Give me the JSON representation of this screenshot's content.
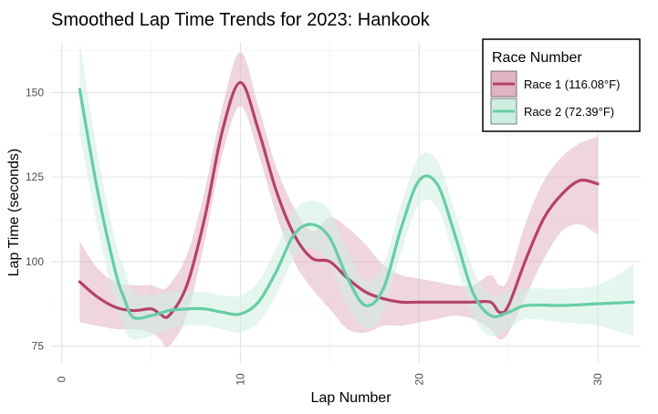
{
  "chart_data": {
    "type": "line",
    "title": "Smoothed Lap Time Trends for 2023: Hankook",
    "xlabel": "Lap Number",
    "ylabel": "Lap Time (seconds)",
    "xlim": [
      -0.6,
      32.4
    ],
    "ylim": [
      70,
      165
    ],
    "xticks": [
      0,
      10,
      20,
      30
    ],
    "yticks": [
      75,
      100,
      125,
      150
    ],
    "grid": true,
    "legend": {
      "title": "Race Number",
      "position": "top-right"
    },
    "series": [
      {
        "name": "Race 1 (116.08°F)",
        "color": "#b5426a",
        "fill": "#e2b3c4",
        "x": [
          1,
          2,
          3,
          4,
          5,
          5.5,
          6,
          7,
          8,
          9,
          10,
          11,
          12,
          13,
          14,
          15,
          16,
          17,
          18,
          19,
          20,
          21,
          22,
          23,
          24,
          24.5,
          25,
          26,
          27,
          28,
          29,
          30
        ],
        "y": [
          94,
          89.5,
          86.5,
          85.5,
          86,
          84.5,
          84,
          93,
          113,
          139,
          153,
          139,
          121,
          108,
          101,
          100,
          95,
          91,
          89,
          88,
          88,
          88,
          88,
          88,
          88,
          85,
          87,
          101,
          113,
          120,
          124,
          123
        ],
        "lower": [
          82,
          81,
          80,
          80,
          79,
          77,
          75,
          84,
          106,
          132,
          146,
          132,
          114,
          100,
          92,
          86,
          80,
          79,
          81,
          81,
          82,
          83,
          84,
          83,
          80,
          77,
          79,
          90,
          101,
          109,
          111,
          108
        ],
        "upper": [
          106,
          98,
          94,
          93,
          93,
          92,
          93,
          102,
          121,
          146,
          162,
          146,
          128,
          116,
          109,
          113,
          110,
          105,
          99,
          96,
          95,
          94,
          93,
          93,
          96,
          93,
          95,
          112,
          124,
          131,
          135,
          137
        ]
      },
      {
        "name": "Race 2 (72.39°F)",
        "color": "#66cda5",
        "fill": "#cdeee0",
        "x": [
          1,
          2,
          3,
          3.5,
          4,
          5,
          6,
          7,
          8,
          9,
          10,
          11,
          12,
          13,
          14,
          15,
          16,
          17,
          18,
          19,
          20,
          21,
          22,
          23,
          24,
          25,
          26,
          28,
          30,
          32
        ],
        "y": [
          151,
          121,
          97,
          89,
          83.5,
          84,
          85.5,
          86,
          86,
          85,
          84.5,
          88,
          97,
          108,
          111,
          107,
          95,
          87,
          92,
          110,
          124,
          123,
          108,
          91,
          84,
          85,
          87,
          87,
          87.5,
          88
        ],
        "lower": [
          138,
          110,
          88,
          80,
          77,
          78,
          80,
          81,
          81,
          80,
          79,
          82,
          90,
          101,
          104,
          99,
          87,
          80,
          85,
          103,
          117,
          116,
          101,
          84,
          78,
          80,
          83,
          82,
          81,
          78
        ],
        "upper": [
          165,
          132,
          106,
          98,
          91,
          90,
          91,
          91,
          91,
          90,
          90,
          94,
          104,
          115,
          118,
          115,
          103,
          94,
          99,
          117,
          131,
          130,
          115,
          98,
          90,
          91,
          92,
          92,
          93,
          99
        ]
      }
    ]
  }
}
